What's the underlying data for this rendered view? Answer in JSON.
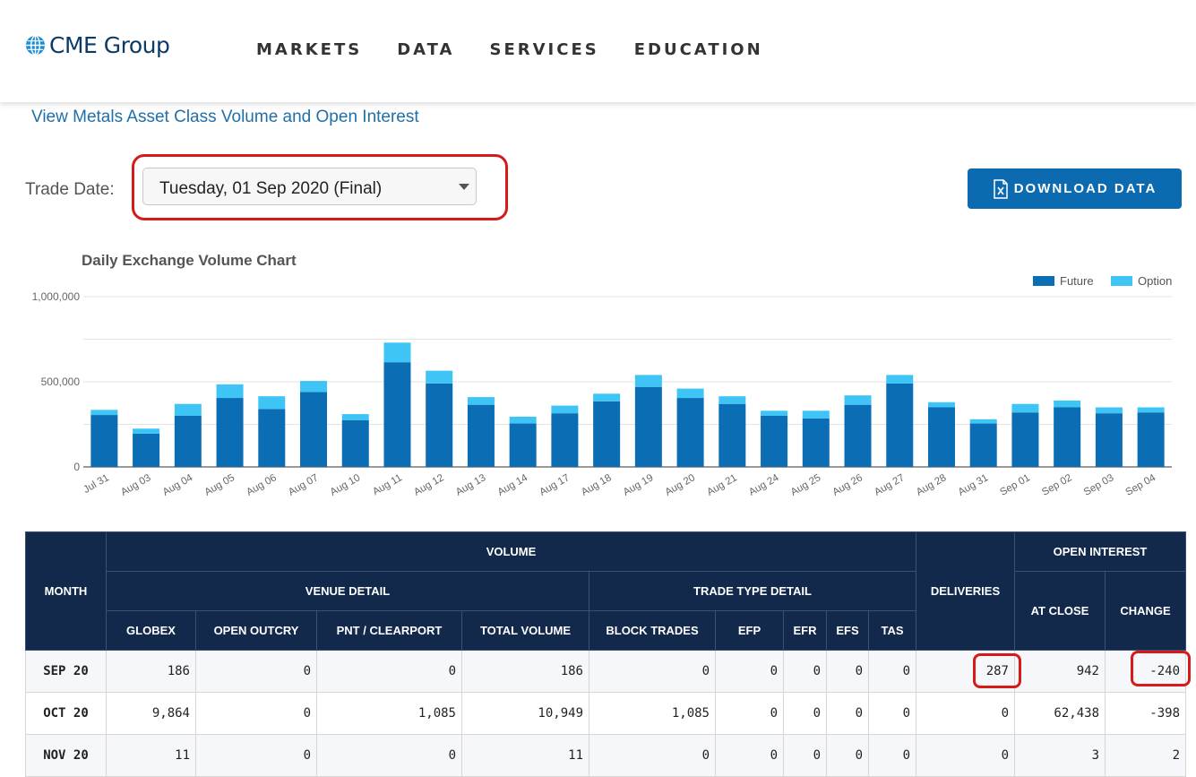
{
  "header": {
    "logo_text": "CME Group",
    "nav": [
      "MARKETS",
      "DATA",
      "SERVICES",
      "EDUCATION"
    ]
  },
  "links": {
    "metals": "View Metals Asset Class Volume and Open Interest"
  },
  "trade_date": {
    "label": "Trade Date:",
    "value": "Tuesday, 01 Sep 2020 (Final)"
  },
  "download": {
    "label": "DOWNLOAD DATA"
  },
  "colors": {
    "future": "#0b6db3",
    "option": "#3ec5f5",
    "header_bg": "#13294b",
    "highlight": "#d61a1a"
  },
  "chart_data": {
    "type": "bar",
    "title": "Daily Exchange Volume Chart",
    "categories": [
      "Jul 31",
      "Aug 03",
      "Aug 04",
      "Aug 05",
      "Aug 06",
      "Aug 07",
      "Aug 10",
      "Aug 11",
      "Aug 12",
      "Aug 13",
      "Aug 14",
      "Aug 17",
      "Aug 18",
      "Aug 19",
      "Aug 20",
      "Aug 21",
      "Aug 24",
      "Aug 25",
      "Aug 26",
      "Aug 27",
      "Aug 28",
      "Aug 31",
      "Sep 01",
      "Sep 02",
      "Sep 03",
      "Sep 04"
    ],
    "series": [
      {
        "name": "Future",
        "values": [
          305000,
          195000,
          300000,
          405000,
          340000,
          440000,
          275000,
          615000,
          490000,
          365000,
          255000,
          315000,
          385000,
          470000,
          405000,
          370000,
          300000,
          285000,
          365000,
          490000,
          350000,
          255000,
          320000,
          350000,
          315000,
          320000
        ]
      },
      {
        "name": "Option",
        "values": [
          30000,
          30000,
          70000,
          80000,
          75000,
          65000,
          35000,
          115000,
          75000,
          45000,
          40000,
          45000,
          45000,
          70000,
          55000,
          45000,
          30000,
          45000,
          55000,
          50000,
          30000,
          25000,
          50000,
          40000,
          35000,
          30000
        ]
      }
    ],
    "stacked": true,
    "ylim": [
      0,
      1000000
    ],
    "yticks": [
      "0",
      "500,000",
      "1,000,000"
    ],
    "legend": "top-right",
    "grid": true
  },
  "table": {
    "groups": {
      "month": "MONTH",
      "volume": "VOLUME",
      "venue": "VENUE DETAIL",
      "trade_type": "TRADE TYPE DETAIL",
      "deliveries": "DELIVERIES",
      "open_interest": "OPEN INTEREST",
      "at_close": "AT CLOSE",
      "change": "CHANGE"
    },
    "columns": [
      "GLOBEX",
      "OPEN OUTCRY",
      "PNT / CLEARPORT",
      "TOTAL VOLUME",
      "BLOCK TRADES",
      "EFP",
      "EFR",
      "EFS",
      "TAS"
    ],
    "rows": [
      [
        "SEP 20",
        "186",
        "0",
        "0",
        "186",
        "0",
        "0",
        "0",
        "0",
        "0",
        "287",
        "942",
        "-240"
      ],
      [
        "OCT 20",
        "9,864",
        "0",
        "1,085",
        "10,949",
        "1,085",
        "0",
        "0",
        "0",
        "0",
        "0",
        "62,438",
        "-398"
      ],
      [
        "NOV 20",
        "11",
        "0",
        "0",
        "11",
        "0",
        "0",
        "0",
        "0",
        "0",
        "0",
        "3",
        "2"
      ]
    ]
  }
}
